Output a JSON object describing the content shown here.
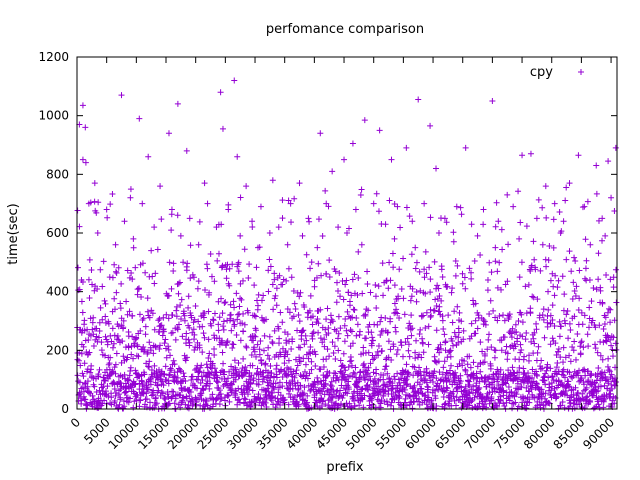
{
  "chart_data": {
    "type": "scatter",
    "title": "perfomance comparison",
    "xlabel": "prefix",
    "ylabel": "time(sec)",
    "xlim": [
      0,
      91000
    ],
    "ylim": [
      0,
      1200
    ],
    "xticks": [
      0,
      5000,
      10000,
      15000,
      20000,
      25000,
      30000,
      35000,
      40000,
      45000,
      50000,
      55000,
      60000,
      65000,
      70000,
      75000,
      80000,
      85000,
      90000
    ],
    "yticks": [
      0,
      200,
      400,
      600,
      800,
      1000,
      1200
    ],
    "legend": "top-right",
    "grid": false,
    "series": [
      {
        "name": "cpy",
        "color": "#9400d3",
        "marker": "+",
        "points": [
          [
            400,
            970
          ],
          [
            1000,
            1035
          ],
          [
            1400,
            960
          ],
          [
            1000,
            850
          ],
          [
            1500,
            840
          ],
          [
            3000,
            770
          ],
          [
            7500,
            1070
          ],
          [
            9000,
            720
          ],
          [
            10500,
            990
          ],
          [
            12000,
            860
          ],
          [
            14000,
            760
          ],
          [
            15500,
            940
          ],
          [
            17000,
            1040
          ],
          [
            18500,
            880
          ],
          [
            21500,
            770
          ],
          [
            24200,
            1080
          ],
          [
            24600,
            955
          ],
          [
            26500,
            1120
          ],
          [
            27000,
            860
          ],
          [
            28500,
            760
          ],
          [
            33000,
            780
          ],
          [
            37500,
            770
          ],
          [
            41000,
            940
          ],
          [
            43000,
            810
          ],
          [
            45000,
            850
          ],
          [
            46500,
            905
          ],
          [
            48500,
            985
          ],
          [
            51000,
            950
          ],
          [
            53000,
            850
          ],
          [
            55500,
            890
          ],
          [
            57500,
            1055
          ],
          [
            59500,
            965
          ],
          [
            60500,
            820
          ],
          [
            65500,
            890
          ],
          [
            70000,
            1050
          ],
          [
            72500,
            730
          ],
          [
            75000,
            865
          ],
          [
            76500,
            870
          ],
          [
            79000,
            760
          ],
          [
            83000,
            770
          ],
          [
            84500,
            865
          ],
          [
            87500,
            830
          ],
          [
            89500,
            845
          ],
          [
            90800,
            890
          ],
          [
            2000,
            700
          ],
          [
            5000,
            680
          ],
          [
            8000,
            640
          ],
          [
            11000,
            700
          ],
          [
            13000,
            620
          ],
          [
            16000,
            680
          ],
          [
            19000,
            650
          ],
          [
            22000,
            700
          ],
          [
            23500,
            620
          ],
          [
            25500,
            680
          ],
          [
            29500,
            640
          ],
          [
            31000,
            690
          ],
          [
            34000,
            620
          ],
          [
            36000,
            700
          ],
          [
            39000,
            650
          ],
          [
            42000,
            700
          ],
          [
            44000,
            620
          ],
          [
            47000,
            680
          ],
          [
            50000,
            700
          ],
          [
            52000,
            630
          ],
          [
            54000,
            690
          ],
          [
            56500,
            640
          ],
          [
            58500,
            700
          ],
          [
            62000,
            650
          ],
          [
            64000,
            690
          ],
          [
            66500,
            630
          ],
          [
            68500,
            680
          ],
          [
            71000,
            640
          ],
          [
            73500,
            690
          ],
          [
            77500,
            650
          ],
          [
            80500,
            700
          ],
          [
            82000,
            640
          ],
          [
            85500,
            690
          ],
          [
            88500,
            650
          ],
          [
            90000,
            720
          ],
          [
            3500,
            600
          ],
          [
            6500,
            560
          ],
          [
            9500,
            580
          ],
          [
            12500,
            540
          ],
          [
            17500,
            590
          ],
          [
            20500,
            560
          ],
          [
            27500,
            590
          ],
          [
            30500,
            550
          ],
          [
            32500,
            600
          ],
          [
            35500,
            560
          ],
          [
            38000,
            590
          ],
          [
            40500,
            550
          ],
          [
            45500,
            600
          ],
          [
            48000,
            560
          ],
          [
            53500,
            580
          ],
          [
            57000,
            550
          ],
          [
            61000,
            600
          ],
          [
            63500,
            570
          ],
          [
            67500,
            590
          ],
          [
            70500,
            550
          ],
          [
            74500,
            580
          ],
          [
            78500,
            560
          ],
          [
            81500,
            600
          ],
          [
            86500,
            560
          ],
          [
            89000,
            590
          ]
        ]
      }
    ]
  }
}
